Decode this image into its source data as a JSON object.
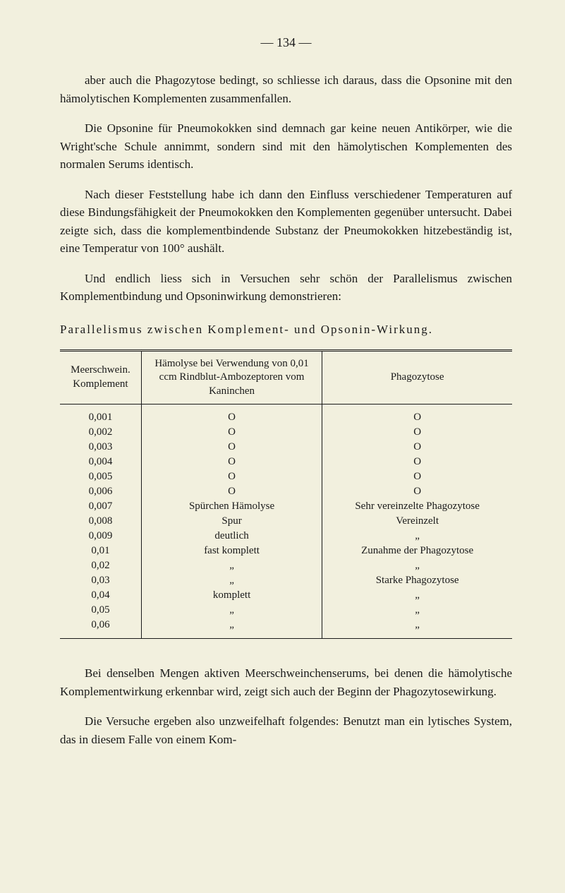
{
  "page_number": "— 134 —",
  "paragraphs": {
    "p1": "aber auch die Phagozytose bedingt, so schliesse ich daraus, dass die Opsonine mit den hämolytischen Komplementen zusammenfallen.",
    "p2": "Die Opsonine für Pneumokokken sind demnach gar keine neuen Antikörper, wie die Wright'sche Schule annimmt, sondern sind mit den hämolytischen Komplementen des normalen Serums identisch.",
    "p3": "Nach dieser Feststellung habe ich dann den Einfluss verschiedener Temperaturen auf diese Bindungsfähigkeit der Pneumokokken den Komplementen gegenüber untersucht. Dabei zeigte sich, dass die komplementbindende Substanz der Pneumokokken hitzebeständig ist, eine Temperatur von 100° aushält.",
    "p4": "Und endlich liess sich in Versuchen sehr schön der Parallelismus zwischen Komplementbindung und Opsoninwirkung demonstrieren:",
    "p5": "Bei denselben Mengen aktiven Meerschweinchenserums, bei denen die hämolytische Komplementwirkung erkennbar wird, zeigt sich auch der Beginn der Phagozytosewirkung.",
    "p6": "Die Versuche ergeben also unzweifelhaft folgendes: Benutzt man ein lytisches System, das in diesem Falle von einem Kom-"
  },
  "table": {
    "caption": "Parallelismus zwischen Komplement- und Opsonin-Wirkung.",
    "headers": {
      "h1": "Meerschwein. Komplement",
      "h2": "Hämolyse bei Verwendung von 0,01 ccm Rindblut-Ambozeptoren vom Kaninchen",
      "h3": "Phagozytose"
    },
    "rows": [
      {
        "c1": "0,001",
        "c2": "O",
        "c3": "O"
      },
      {
        "c1": "0,002",
        "c2": "O",
        "c3": "O"
      },
      {
        "c1": "0,003",
        "c2": "O",
        "c3": "O"
      },
      {
        "c1": "0,004",
        "c2": "O",
        "c3": "O"
      },
      {
        "c1": "0,005",
        "c2": "O",
        "c3": "O"
      },
      {
        "c1": "0,006",
        "c2": "O",
        "c3": "O"
      },
      {
        "c1": "0,007",
        "c2": "Spürchen Hämolyse",
        "c3": "Sehr vereinzelte Phagozytose"
      },
      {
        "c1": "0,008",
        "c2": "Spur",
        "c3": "Vereinzelt"
      },
      {
        "c1": "0,009",
        "c2": "deutlich",
        "c3": "„"
      },
      {
        "c1": "0,01",
        "c2": "fast komplett",
        "c3": "Zunahme der Phagozytose"
      },
      {
        "c1": "0,02",
        "c2": "„",
        "c3": "„"
      },
      {
        "c1": "0,03",
        "c2": "„",
        "c3": "Starke Phagozytose"
      },
      {
        "c1": "0,04",
        "c2": "komplett",
        "c3": "„"
      },
      {
        "c1": "0,05",
        "c2": "„",
        "c3": "„"
      },
      {
        "c1": "0,06",
        "c2": "„",
        "c3": "„"
      }
    ]
  }
}
